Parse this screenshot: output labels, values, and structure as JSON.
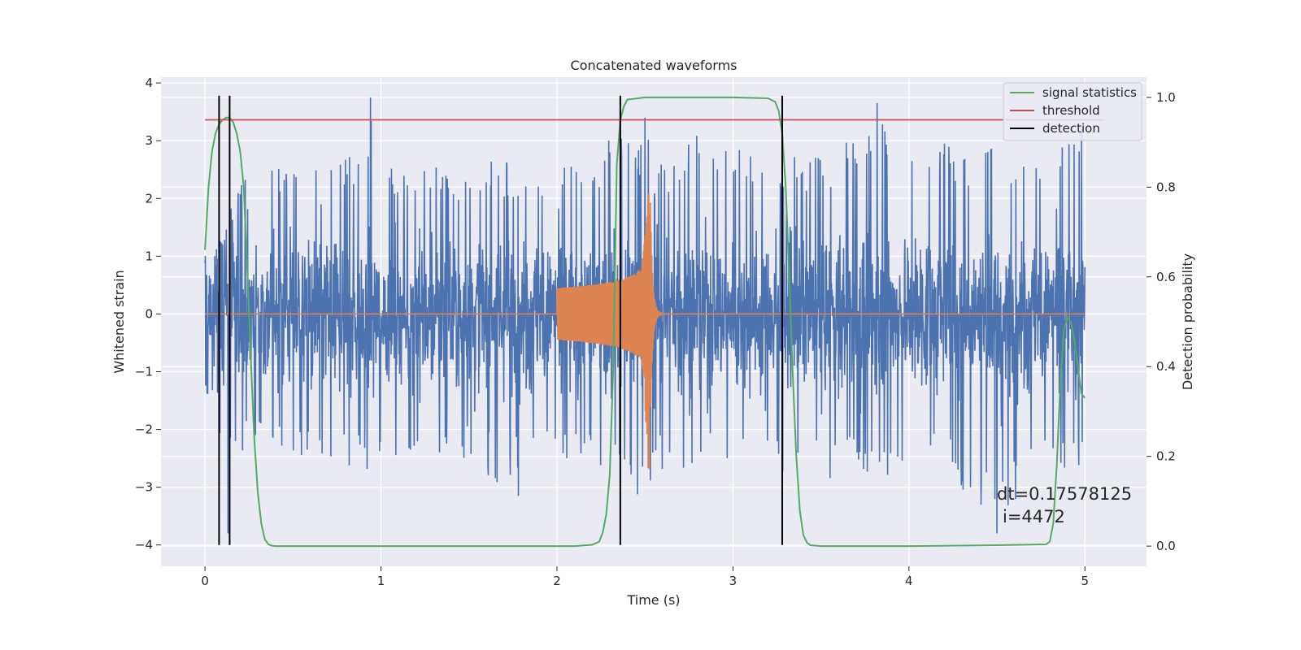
{
  "chart_data": {
    "type": "line",
    "title": "Concatenated waveforms",
    "xlabel": "Time (s)",
    "ylabel": "Whitened strain",
    "y2label": "Detection probability",
    "xlim": [
      -0.25,
      5.35
    ],
    "ylim": [
      -4.37,
      4.1
    ],
    "y2lim": [
      -0.045,
      1.045
    ],
    "xticks": [
      0,
      1,
      2,
      3,
      4,
      5
    ],
    "xtick_labels": [
      "0",
      "1",
      "2",
      "3",
      "4",
      "5"
    ],
    "yticks": [
      -4,
      -3,
      -2,
      -1,
      0,
      1,
      2,
      3,
      4
    ],
    "ytick_labels": [
      "−4",
      "−3",
      "−2",
      "−1",
      "0",
      "1",
      "2",
      "3",
      "4"
    ],
    "y2ticks": [
      0.0,
      0.2,
      0.4,
      0.6,
      0.8,
      1.0
    ],
    "y2tick_labels": [
      "0.0",
      "0.2",
      "0.4",
      "0.6",
      "0.8",
      "1.0"
    ],
    "grid": true,
    "legend_placement": "top-right",
    "series": [
      {
        "name": "",
        "kind": "noise",
        "color": "#4c72b0",
        "x_range": [
          0,
          5
        ],
        "typical_amplitude": 1.5,
        "envelope_x": [
          0.0,
          0.1,
          0.2,
          0.3,
          0.5,
          0.7,
          0.9,
          0.95,
          1.1,
          1.3,
          1.5,
          1.7,
          1.8,
          2.0,
          2.2,
          2.35,
          2.45,
          2.5,
          2.55,
          2.8,
          3.0,
          3.3,
          3.5,
          3.8,
          4.0,
          4.2,
          4.5,
          4.7,
          4.9,
          4.97,
          5.0
        ],
        "envelope_upper": [
          1.0,
          1.3,
          2.5,
          2.8,
          2.6,
          2.7,
          2.9,
          3.7,
          2.6,
          2.7,
          2.6,
          2.7,
          2.5,
          2.6,
          2.7,
          3.3,
          2.9,
          3.4,
          2.6,
          3.1,
          2.9,
          2.9,
          2.8,
          3.4,
          3.0,
          3.0,
          2.9,
          2.9,
          3.0,
          3.3,
          1.0
        ],
        "envelope_lower": [
          -1.4,
          -2.2,
          -2.5,
          -2.4,
          -2.5,
          -2.6,
          -2.7,
          -2.7,
          -2.6,
          -2.7,
          -2.5,
          -3.1,
          -2.6,
          -2.6,
          -2.7,
          -2.6,
          -3.2,
          -3.4,
          -2.8,
          -2.7,
          -2.8,
          -2.8,
          -2.9,
          -2.8,
          -2.8,
          -2.7,
          -3.8,
          -2.8,
          -2.8,
          -2.9,
          -2.4
        ],
        "peaks": [
          [
            0.13,
            -3.8
          ],
          [
            0.94,
            3.75
          ],
          [
            1.78,
            -3.15
          ],
          [
            2.5,
            3.4
          ],
          [
            3.82,
            3.65
          ],
          [
            4.5,
            -3.8
          ],
          [
            4.98,
            3.2
          ]
        ]
      },
      {
        "name": "",
        "kind": "chirp",
        "color": "#dd8452",
        "x_start": 2.0,
        "x_merger": 2.53,
        "x_end": 3.0,
        "amplitude_start": 0.45,
        "amplitude_peak_upper": 2.15,
        "amplitude_peak_lower": -2.7,
        "baseline": 0.0
      },
      {
        "name": "signal statistics",
        "axis": "y2",
        "color": "#55a868",
        "x": [
          0.0,
          0.02,
          0.04,
          0.06,
          0.08,
          0.1,
          0.12,
          0.14,
          0.16,
          0.18,
          0.2,
          0.22,
          0.24,
          0.26,
          0.28,
          0.3,
          0.32,
          0.34,
          0.36,
          0.38,
          0.4,
          0.5,
          1.0,
          1.5,
          2.0,
          2.1,
          2.2,
          2.24,
          2.26,
          2.28,
          2.3,
          2.32,
          2.34,
          2.36,
          2.38,
          2.4,
          2.5,
          3.0,
          3.2,
          3.24,
          3.26,
          3.28,
          3.3,
          3.32,
          3.34,
          3.36,
          3.38,
          3.4,
          3.42,
          3.44,
          3.5,
          4.0,
          4.5,
          4.78,
          4.8,
          4.82,
          4.84,
          4.86,
          4.88,
          4.9,
          4.92,
          4.94,
          4.96,
          4.98,
          5.0
        ],
        "values": [
          0.66,
          0.8,
          0.88,
          0.92,
          0.94,
          0.95,
          0.955,
          0.955,
          0.945,
          0.92,
          0.88,
          0.8,
          0.62,
          0.42,
          0.24,
          0.12,
          0.05,
          0.015,
          0.004,
          0.001,
          0.0,
          0.0,
          0.0,
          0.0,
          0.0,
          0.0,
          0.003,
          0.01,
          0.03,
          0.07,
          0.16,
          0.4,
          0.85,
          0.95,
          0.98,
          0.995,
          1.0,
          1.0,
          0.998,
          0.99,
          0.97,
          0.92,
          0.8,
          0.6,
          0.38,
          0.2,
          0.08,
          0.025,
          0.008,
          0.002,
          0.0,
          0.0,
          0.002,
          0.004,
          0.01,
          0.05,
          0.18,
          0.36,
          0.48,
          0.51,
          0.5,
          0.46,
          0.4,
          0.34,
          0.33
        ]
      },
      {
        "name": "threshold",
        "axis": "y2",
        "color": "#c44e52",
        "x": [
          0.0,
          5.1
        ],
        "values": [
          0.95,
          0.95
        ]
      },
      {
        "name": "detection",
        "kind": "vlines",
        "color": "#000000",
        "x": [
          0.08,
          0.14,
          2.36,
          3.28
        ],
        "y_range": [
          -4.0,
          3.78
        ]
      }
    ],
    "annotations": [
      "dt=0.17578125",
      "i=4472"
    ]
  },
  "colors": {
    "figure_bg": "#ffffff",
    "axes_bg": "#eaeaf2",
    "grid": "#ffffff",
    "text": "#262626"
  }
}
